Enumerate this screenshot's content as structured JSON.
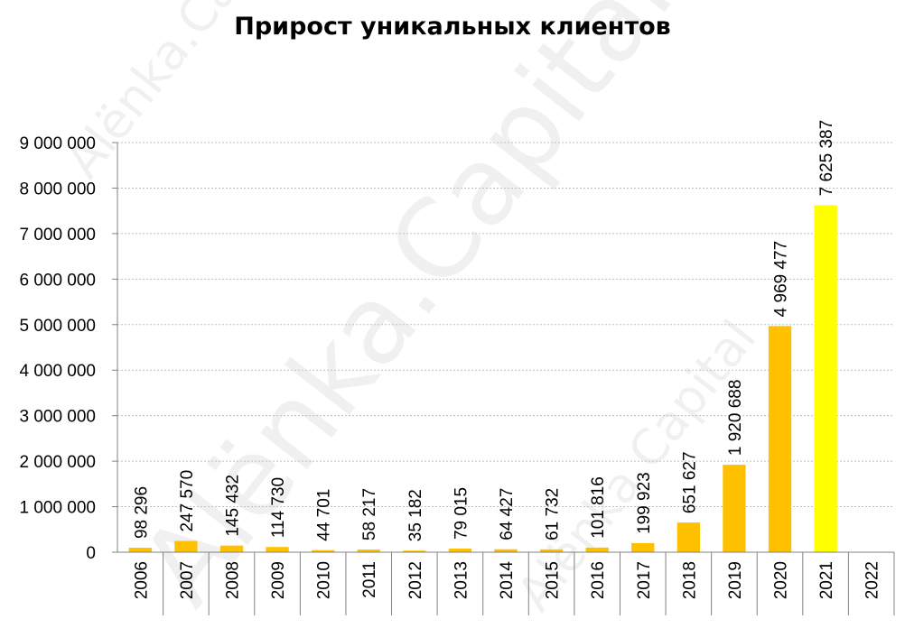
{
  "chart_data": {
    "type": "bar",
    "title": "Прирост уникальных клиентов",
    "watermark": "Alёnka.Capital",
    "categories": [
      "2006",
      "2007",
      "2008",
      "2009",
      "2010",
      "2011",
      "2012",
      "2013",
      "2014",
      "2015",
      "2016",
      "2017",
      "2018",
      "2019",
      "2020",
      "2021",
      "2022"
    ],
    "values": [
      98296,
      247570,
      145432,
      114730,
      44701,
      58217,
      35182,
      79015,
      64427,
      61732,
      101816,
      199923,
      651627,
      1920688,
      4969477,
      7625387,
      null
    ],
    "data_labels": [
      "98 296",
      "247 570",
      "145 432",
      "114 730",
      "44 701",
      "58 217",
      "35 182",
      "79 015",
      "64 427",
      "61 732",
      "101 816",
      "199 923",
      "651 627",
      "1 920 688",
      "4 969 477",
      "7 625 387",
      ""
    ],
    "ylim": [
      0,
      9000000
    ],
    "y_ticks": [
      0,
      1000000,
      2000000,
      3000000,
      4000000,
      5000000,
      6000000,
      7000000,
      8000000,
      9000000
    ],
    "y_tick_labels": [
      "0",
      "1 000 000",
      "2 000 000",
      "3 000 000",
      "4 000 000",
      "5 000 000",
      "6 000 000",
      "7 000 000",
      "8 000 000",
      "9 000 000"
    ],
    "xlabel": "",
    "ylabel": "",
    "grid": true,
    "legend": "none",
    "colors": {
      "bar": "#FFC000",
      "bar_highlight": "#FFFF00",
      "grid": "#BFBFBF",
      "axis": "#808080"
    },
    "highlight_index": 15
  }
}
